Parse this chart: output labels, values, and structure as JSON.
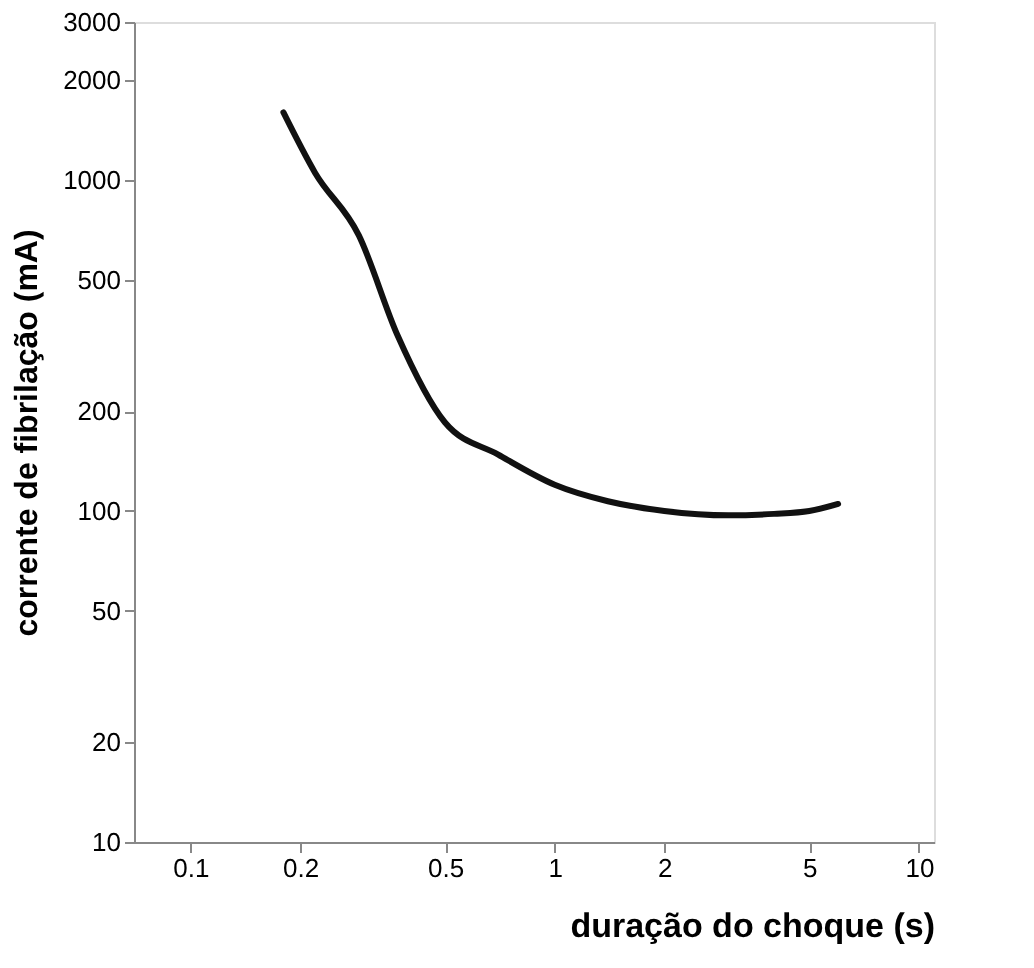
{
  "chart_data": {
    "type": "line",
    "xlabel": "duração do choque (s)",
    "ylabel": "corrente de fibrilação (mA)",
    "log": "xy",
    "grid": false,
    "marker": "none",
    "line_style": "solid",
    "xlim": [
      0.07,
      11
    ],
    "xticks": [
      0.1,
      0.2,
      0.5,
      1,
      2,
      5,
      10
    ],
    "ylim": [
      10,
      3000
    ],
    "yticks": [
      10,
      20,
      50,
      100,
      200,
      500,
      1000,
      2000,
      3000
    ],
    "series": [
      {
        "color": "#111111",
        "x": [
          0.18,
          0.22,
          0.29,
          0.37,
          0.5,
          0.7,
          1,
          1.4,
          2,
          3,
          4,
          5,
          6
        ],
        "values": [
          1600,
          1050,
          680,
          340,
          185,
          148,
          120,
          107,
          100,
          97,
          98,
          100,
          105
        ]
      }
    ]
  }
}
